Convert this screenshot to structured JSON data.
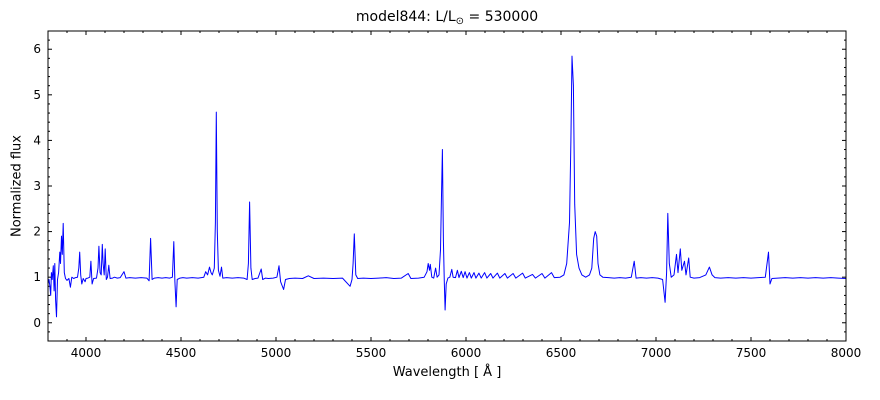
{
  "chart_data": {
    "type": "line",
    "title_parts": {
      "prefix": "model844: L/L",
      "subscript": "⊙",
      "suffix": " = 530000"
    },
    "xlabel": "Wavelength [ Å ]",
    "ylabel": "Normalized flux",
    "xlim": [
      3800,
      8000
    ],
    "ylim": [
      -0.4,
      6.4
    ],
    "x_major_ticks": [
      4000,
      4500,
      5000,
      5500,
      6000,
      6500,
      7000,
      7500,
      8000
    ],
    "x_minor_step": 100,
    "y_major_ticks": [
      0,
      1,
      2,
      3,
      4,
      5,
      6
    ],
    "y_minor_step": 0.2,
    "grid": false,
    "legend": null,
    "line_color": "#0000ff",
    "frame_color": "#000000",
    "series": [
      {
        "name": "model844 normalized spectrum",
        "points": [
          [
            3800,
            0.85
          ],
          [
            3805,
            0.95
          ],
          [
            3810,
            0.8
          ],
          [
            3814,
            0.6
          ],
          [
            3818,
            1.1
          ],
          [
            3822,
            0.95
          ],
          [
            3828,
            1.25
          ],
          [
            3832,
            0.7
          ],
          [
            3836,
            1.3
          ],
          [
            3840,
            0.5
          ],
          [
            3845,
            0.13
          ],
          [
            3850,
            0.95
          ],
          [
            3856,
            1.1
          ],
          [
            3862,
            1.55
          ],
          [
            3866,
            1.3
          ],
          [
            3871,
            1.9
          ],
          [
            3875,
            1.5
          ],
          [
            3880,
            2.18
          ],
          [
            3886,
            1.1
          ],
          [
            3892,
            0.97
          ],
          [
            3900,
            0.93
          ],
          [
            3910,
            0.97
          ],
          [
            3918,
            0.78
          ],
          [
            3925,
            1.0
          ],
          [
            3935,
            0.97
          ],
          [
            3945,
            0.99
          ],
          [
            3955,
            1.0
          ],
          [
            3962,
            1.2
          ],
          [
            3967,
            1.55
          ],
          [
            3972,
            1.05
          ],
          [
            3978,
            0.85
          ],
          [
            3985,
            0.97
          ],
          [
            3995,
            0.9
          ],
          [
            4000,
            0.97
          ],
          [
            4010,
            0.98
          ],
          [
            4020,
            1.0
          ],
          [
            4026,
            1.35
          ],
          [
            4032,
            0.85
          ],
          [
            4040,
            0.97
          ],
          [
            4055,
            0.98
          ],
          [
            4063,
            1.2
          ],
          [
            4068,
            1.68
          ],
          [
            4074,
            1.1
          ],
          [
            4080,
            1.05
          ],
          [
            4086,
            1.72
          ],
          [
            4090,
            1.3
          ],
          [
            4096,
            1.05
          ],
          [
            4101,
            1.62
          ],
          [
            4107,
            0.95
          ],
          [
            4113,
            1.0
          ],
          [
            4120,
            1.26
          ],
          [
            4127,
            0.97
          ],
          [
            4140,
            0.98
          ],
          [
            4150,
            1.0
          ],
          [
            4165,
            0.98
          ],
          [
            4180,
            0.99
          ],
          [
            4200,
            1.12
          ],
          [
            4210,
            0.98
          ],
          [
            4230,
            0.99
          ],
          [
            4260,
            0.98
          ],
          [
            4290,
            0.99
          ],
          [
            4320,
            0.98
          ],
          [
            4332,
            0.92
          ],
          [
            4340,
            1.85
          ],
          [
            4348,
            0.95
          ],
          [
            4360,
            0.98
          ],
          [
            4380,
            0.99
          ],
          [
            4400,
            0.98
          ],
          [
            4420,
            0.99
          ],
          [
            4440,
            0.98
          ],
          [
            4455,
            1.0
          ],
          [
            4462,
            1.78
          ],
          [
            4468,
            0.9
          ],
          [
            4474,
            0.35
          ],
          [
            4480,
            0.95
          ],
          [
            4495,
            0.98
          ],
          [
            4510,
            0.99
          ],
          [
            4530,
            0.98
          ],
          [
            4560,
            0.99
          ],
          [
            4590,
            0.98
          ],
          [
            4620,
            1.0
          ],
          [
            4630,
            1.12
          ],
          [
            4640,
            1.05
          ],
          [
            4650,
            1.22
          ],
          [
            4658,
            1.1
          ],
          [
            4665,
            1.05
          ],
          [
            4675,
            1.2
          ],
          [
            4681,
            2.2
          ],
          [
            4686,
            4.62
          ],
          [
            4691,
            2.0
          ],
          [
            4697,
            1.15
          ],
          [
            4705,
            1.02
          ],
          [
            4713,
            1.22
          ],
          [
            4720,
            0.98
          ],
          [
            4740,
            0.99
          ],
          [
            4770,
            0.98
          ],
          [
            4800,
            0.99
          ],
          [
            4830,
            0.98
          ],
          [
            4848,
            0.95
          ],
          [
            4855,
            1.3
          ],
          [
            4861,
            2.65
          ],
          [
            4868,
            1.2
          ],
          [
            4875,
            0.95
          ],
          [
            4890,
            0.97
          ],
          [
            4905,
            0.98
          ],
          [
            4922,
            1.18
          ],
          [
            4930,
            0.95
          ],
          [
            4945,
            0.98
          ],
          [
            4960,
            0.97
          ],
          [
            4985,
            0.98
          ],
          [
            5005,
            1.0
          ],
          [
            5016,
            1.25
          ],
          [
            5024,
            0.9
          ],
          [
            5040,
            0.73
          ],
          [
            5050,
            0.95
          ],
          [
            5070,
            0.97
          ],
          [
            5100,
            0.98
          ],
          [
            5140,
            0.97
          ],
          [
            5170,
            1.03
          ],
          [
            5200,
            0.97
          ],
          [
            5250,
            0.98
          ],
          [
            5300,
            0.97
          ],
          [
            5350,
            0.98
          ],
          [
            5390,
            0.8
          ],
          [
            5400,
            0.95
          ],
          [
            5406,
            1.3
          ],
          [
            5412,
            1.95
          ],
          [
            5420,
            1.05
          ],
          [
            5430,
            0.97
          ],
          [
            5460,
            0.98
          ],
          [
            5500,
            0.97
          ],
          [
            5540,
            0.98
          ],
          [
            5580,
            0.99
          ],
          [
            5620,
            0.97
          ],
          [
            5660,
            0.98
          ],
          [
            5696,
            1.08
          ],
          [
            5710,
            0.97
          ],
          [
            5750,
            0.98
          ],
          [
            5780,
            1.0
          ],
          [
            5795,
            1.12
          ],
          [
            5801,
            1.3
          ],
          [
            5808,
            1.15
          ],
          [
            5812,
            1.28
          ],
          [
            5820,
            1.0
          ],
          [
            5830,
            0.98
          ],
          [
            5840,
            1.2
          ],
          [
            5848,
            1.0
          ],
          [
            5858,
            1.05
          ],
          [
            5866,
            1.6
          ],
          [
            5871,
            2.8
          ],
          [
            5876,
            3.8
          ],
          [
            5881,
            1.8
          ],
          [
            5886,
            0.9
          ],
          [
            5890,
            0.28
          ],
          [
            5896,
            0.85
          ],
          [
            5905,
            0.98
          ],
          [
            5915,
            1.0
          ],
          [
            5925,
            1.17
          ],
          [
            5932,
            1.0
          ],
          [
            5945,
            0.99
          ],
          [
            5955,
            1.15
          ],
          [
            5963,
            0.99
          ],
          [
            5975,
            1.13
          ],
          [
            5985,
            0.99
          ],
          [
            5995,
            1.12
          ],
          [
            6005,
            0.98
          ],
          [
            6018,
            1.1
          ],
          [
            6028,
            0.98
          ],
          [
            6042,
            1.1
          ],
          [
            6052,
            0.98
          ],
          [
            6068,
            1.09
          ],
          [
            6080,
            0.98
          ],
          [
            6098,
            1.1
          ],
          [
            6110,
            0.98
          ],
          [
            6130,
            1.08
          ],
          [
            6142,
            0.98
          ],
          [
            6165,
            1.09
          ],
          [
            6178,
            0.98
          ],
          [
            6205,
            1.08
          ],
          [
            6218,
            0.98
          ],
          [
            6248,
            1.08
          ],
          [
            6262,
            0.98
          ],
          [
            6298,
            1.09
          ],
          [
            6312,
            0.98
          ],
          [
            6350,
            1.06
          ],
          [
            6365,
            0.98
          ],
          [
            6400,
            1.08
          ],
          [
            6415,
            0.98
          ],
          [
            6450,
            1.1
          ],
          [
            6465,
            0.99
          ],
          [
            6495,
            1.0
          ],
          [
            6515,
            1.05
          ],
          [
            6530,
            1.3
          ],
          [
            6545,
            2.2
          ],
          [
            6552,
            4.0
          ],
          [
            6558,
            5.85
          ],
          [
            6565,
            5.2
          ],
          [
            6572,
            2.6
          ],
          [
            6582,
            1.5
          ],
          [
            6595,
            1.2
          ],
          [
            6610,
            1.05
          ],
          [
            6630,
            1.0
          ],
          [
            6650,
            1.05
          ],
          [
            6662,
            1.2
          ],
          [
            6672,
            1.85
          ],
          [
            6680,
            2.0
          ],
          [
            6688,
            1.9
          ],
          [
            6695,
            1.3
          ],
          [
            6705,
            1.05
          ],
          [
            6720,
            1.0
          ],
          [
            6750,
            0.99
          ],
          [
            6780,
            0.98
          ],
          [
            6810,
            0.99
          ],
          [
            6840,
            0.98
          ],
          [
            6870,
            1.0
          ],
          [
            6885,
            1.35
          ],
          [
            6895,
            0.98
          ],
          [
            6920,
            0.99
          ],
          [
            6950,
            0.98
          ],
          [
            6980,
            0.99
          ],
          [
            7010,
            0.98
          ],
          [
            7035,
            0.95
          ],
          [
            7048,
            0.45
          ],
          [
            7056,
            1.1
          ],
          [
            7062,
            2.4
          ],
          [
            7070,
            1.3
          ],
          [
            7080,
            1.0
          ],
          [
            7095,
            1.05
          ],
          [
            7108,
            1.5
          ],
          [
            7116,
            1.1
          ],
          [
            7128,
            1.62
          ],
          [
            7136,
            1.15
          ],
          [
            7150,
            1.35
          ],
          [
            7158,
            1.05
          ],
          [
            7172,
            1.42
          ],
          [
            7180,
            1.0
          ],
          [
            7200,
            0.98
          ],
          [
            7230,
            0.99
          ],
          [
            7262,
            1.05
          ],
          [
            7281,
            1.22
          ],
          [
            7295,
            1.05
          ],
          [
            7310,
            0.99
          ],
          [
            7340,
            0.98
          ],
          [
            7380,
            0.99
          ],
          [
            7420,
            0.98
          ],
          [
            7460,
            0.99
          ],
          [
            7500,
            0.98
          ],
          [
            7540,
            0.99
          ],
          [
            7575,
            1.0
          ],
          [
            7592,
            1.55
          ],
          [
            7600,
            0.85
          ],
          [
            7610,
            0.97
          ],
          [
            7640,
            0.98
          ],
          [
            7680,
            0.99
          ],
          [
            7720,
            0.98
          ],
          [
            7760,
            0.99
          ],
          [
            7800,
            0.98
          ],
          [
            7840,
            0.99
          ],
          [
            7880,
            0.98
          ],
          [
            7920,
            0.99
          ],
          [
            7960,
            0.98
          ],
          [
            8000,
            0.97
          ]
        ]
      }
    ]
  }
}
